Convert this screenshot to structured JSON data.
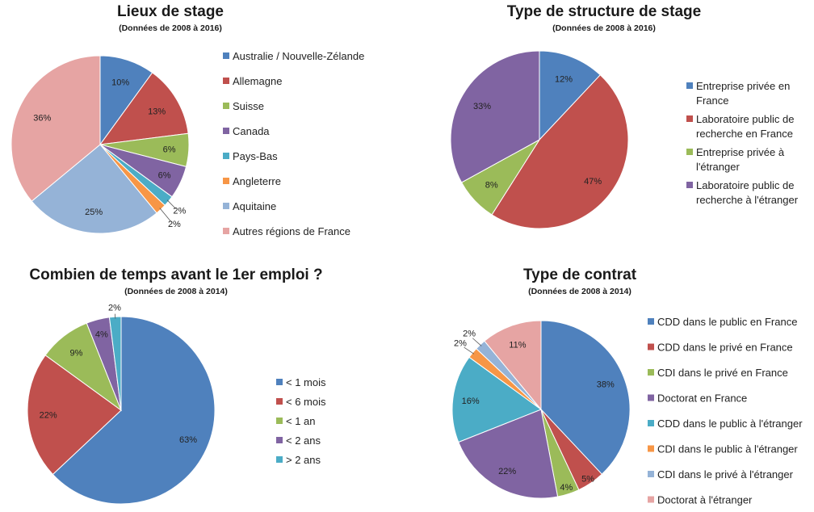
{
  "chart_data": [
    {
      "type": "pie",
      "title": "Lieux de stage",
      "subtitle": "(Données de 2008 à 2016)",
      "categories": [
        "Australie / Nouvelle-Zélande",
        "Allemagne",
        "Suisse",
        "Canada",
        "Pays-Bas",
        "Angleterre",
        "Aquitaine",
        "Autres régions de France"
      ],
      "values": [
        10,
        13,
        6,
        6,
        2,
        2,
        25,
        36
      ],
      "labels": [
        "10%",
        "13%",
        "6%",
        "6%",
        "2%",
        "2%",
        "25%",
        "36%"
      ],
      "colors": [
        "#4f81bd",
        "#c0504d",
        "#9bbb59",
        "#8064a2",
        "#4bacc6",
        "#f79646",
        "#95b3d7",
        "#e6a4a3"
      ],
      "legend": "right"
    },
    {
      "type": "pie",
      "title": "Type de structure de stage",
      "subtitle": "(Données de 2008 à 2016)",
      "categories": [
        "Entreprise privée en France",
        "Laboratoire public de recherche en France",
        "Entreprise privée à l'étranger",
        "Laboratoire public de recherche à l'étranger"
      ],
      "legend_lines": [
        [
          "Entreprise privée en",
          "France"
        ],
        [
          "Laboratoire public de",
          "recherche en France"
        ],
        [
          "Entreprise privée à",
          "l'étranger"
        ],
        [
          "Laboratoire public de",
          "recherche à l'étranger"
        ]
      ],
      "values": [
        12,
        47,
        8,
        33
      ],
      "labels": [
        "12%",
        "47%",
        "8%",
        "33%"
      ],
      "colors": [
        "#4f81bd",
        "#c0504d",
        "#9bbb59",
        "#8064a2"
      ],
      "legend": "right"
    },
    {
      "type": "pie",
      "title": "Combien de temps avant le 1er emploi ?",
      "subtitle": "(Données de 2008 à 2014)",
      "categories": [
        "< 1 mois",
        "< 6 mois",
        "< 1 an",
        "< 2 ans",
        "> 2 ans"
      ],
      "values": [
        63,
        22,
        9,
        4,
        2
      ],
      "labels": [
        "63%",
        "22%",
        "9%",
        "4%",
        "2%"
      ],
      "colors": [
        "#4f81bd",
        "#c0504d",
        "#9bbb59",
        "#8064a2",
        "#4bacc6"
      ],
      "legend": "right"
    },
    {
      "type": "pie",
      "title": "Type de contrat",
      "subtitle": "(Données de 2008 à 2014)",
      "categories": [
        "CDD dans le public en France",
        "CDD dans le privé en France",
        "CDI dans le privé en France",
        "Doctorat en France",
        "CDD dans le public à l'étranger",
        "CDI dans le public à l'étranger",
        "CDI dans le privé à l'étranger",
        "Doctorat à l'étranger"
      ],
      "values": [
        38,
        5,
        4,
        22,
        16,
        2,
        2,
        11
      ],
      "labels": [
        "38%",
        "5%",
        "4%",
        "22%",
        "16%",
        "2%",
        "2%",
        "11%"
      ],
      "colors": [
        "#4f81bd",
        "#c0504d",
        "#9bbb59",
        "#8064a2",
        "#4bacc6",
        "#f79646",
        "#95b3d7",
        "#e6a4a3"
      ],
      "legend": "right"
    }
  ]
}
